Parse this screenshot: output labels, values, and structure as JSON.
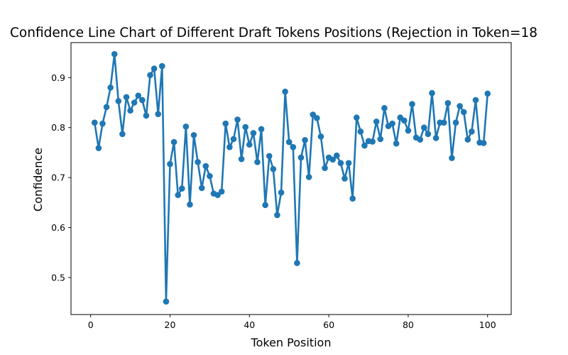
{
  "chart_data": {
    "type": "line",
    "title": "Confidence Line Chart of Different Draft Tokens Positions (Rejection in Token=18",
    "xlabel": "Token Position",
    "ylabel": "Confidence",
    "xlim": [
      -4.95,
      105.95
    ],
    "ylim": [
      0.426,
      0.97
    ],
    "xticks": [
      0,
      20,
      40,
      60,
      80,
      100
    ],
    "yticks": [
      0.5,
      0.6,
      0.7,
      0.8,
      0.9
    ],
    "grid": false,
    "legend": "none",
    "colors": {
      "series": "#1f77b4",
      "axes": "#000000"
    },
    "series": [
      {
        "x": [
          1,
          2,
          3,
          4,
          5,
          6,
          7,
          8,
          9,
          10,
          11,
          12,
          13,
          14,
          15,
          16,
          17,
          18,
          19,
          20,
          21,
          22,
          23,
          24,
          25,
          26,
          27,
          28,
          29,
          30,
          31,
          32,
          33,
          34,
          35,
          36,
          37,
          38,
          39,
          40,
          41,
          42,
          43,
          44,
          45,
          46,
          47,
          48,
          49,
          50,
          51,
          52,
          53,
          54,
          55,
          56,
          57,
          58,
          59,
          60,
          61,
          62,
          63,
          64,
          65,
          66,
          67,
          68,
          69,
          70,
          71,
          72,
          73,
          74,
          75,
          76,
          77,
          78,
          79,
          80,
          81,
          82,
          83,
          84,
          85,
          86,
          87,
          88,
          89,
          90,
          91,
          92,
          93,
          94,
          95,
          96,
          97,
          98,
          99,
          100
        ],
        "values": [
          0.81,
          0.759,
          0.808,
          0.841,
          0.88,
          0.947,
          0.853,
          0.787,
          0.861,
          0.834,
          0.85,
          0.864,
          0.855,
          0.824,
          0.905,
          0.918,
          0.827,
          0.923,
          0.452,
          0.727,
          0.771,
          0.665,
          0.678,
          0.802,
          0.646,
          0.785,
          0.731,
          0.679,
          0.723,
          0.703,
          0.668,
          0.665,
          0.672,
          0.808,
          0.761,
          0.777,
          0.816,
          0.737,
          0.801,
          0.766,
          0.789,
          0.731,
          0.797,
          0.645,
          0.743,
          0.717,
          0.625,
          0.67,
          0.872,
          0.771,
          0.761,
          0.529,
          0.74,
          0.775,
          0.701,
          0.826,
          0.819,
          0.782,
          0.719,
          0.74,
          0.736,
          0.744,
          0.729,
          0.698,
          0.729,
          0.658,
          0.82,
          0.792,
          0.764,
          0.773,
          0.772,
          0.812,
          0.777,
          0.839,
          0.803,
          0.808,
          0.768,
          0.82,
          0.814,
          0.794,
          0.847,
          0.78,
          0.776,
          0.8,
          0.787,
          0.869,
          0.779,
          0.81,
          0.81,
          0.849,
          0.739,
          0.81,
          0.843,
          0.831,
          0.776,
          0.792,
          0.855,
          0.77,
          0.769,
          0.868
        ]
      }
    ]
  }
}
